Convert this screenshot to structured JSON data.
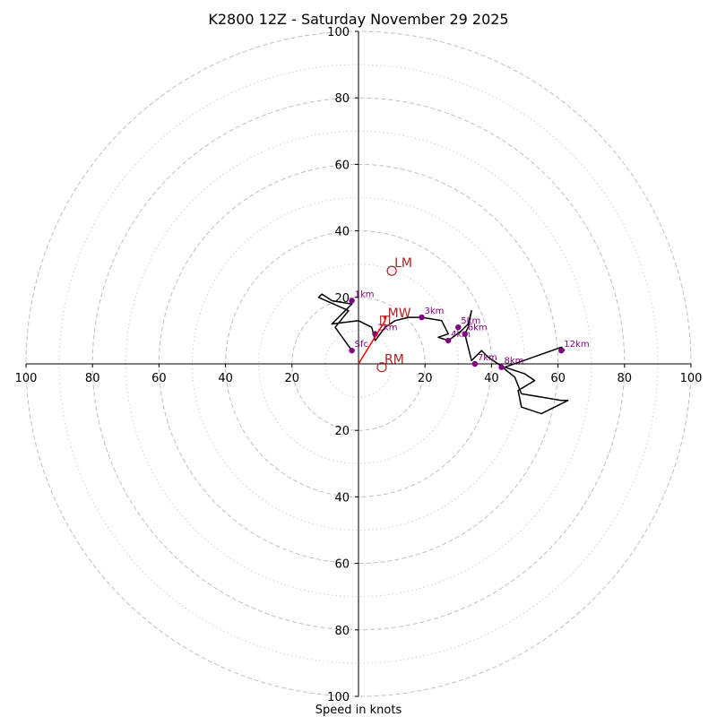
{
  "chart_data": {
    "type": "hodograph",
    "title": "K2800 12Z - Saturday November 29 2025",
    "xlabel": "Speed in knots",
    "range": 100,
    "major_rings": [
      20,
      40,
      60,
      80,
      100
    ],
    "minor_rings": [
      10,
      30,
      50,
      70,
      90
    ],
    "x_ticks": [
      {
        "value": -100,
        "label": "100"
      },
      {
        "value": -80,
        "label": "80"
      },
      {
        "value": -60,
        "label": "60"
      },
      {
        "value": -40,
        "label": "40"
      },
      {
        "value": -20,
        "label": "20"
      },
      {
        "value": 20,
        "label": "20"
      },
      {
        "value": 40,
        "label": "40"
      },
      {
        "value": 60,
        "label": "60"
      },
      {
        "value": 80,
        "label": "80"
      },
      {
        "value": 100,
        "label": "100"
      }
    ],
    "y_ticks": [
      {
        "value": 100,
        "label": "100"
      },
      {
        "value": 80,
        "label": "80"
      },
      {
        "value": 60,
        "label": "60"
      },
      {
        "value": 40,
        "label": "40"
      },
      {
        "value": 20,
        "label": "20"
      },
      {
        "value": -20,
        "label": "20"
      },
      {
        "value": -40,
        "label": "40"
      },
      {
        "value": -60,
        "label": "60"
      },
      {
        "value": -80,
        "label": "80"
      },
      {
        "value": -100,
        "label": "100"
      }
    ],
    "trace": [
      [
        -2,
        4
      ],
      [
        -7,
        11
      ],
      [
        -3,
        16
      ],
      [
        -12,
        20
      ],
      [
        -11,
        21
      ],
      [
        -8,
        19
      ],
      [
        -2,
        18
      ],
      [
        -8,
        12
      ],
      [
        0,
        13
      ],
      [
        4,
        11
      ],
      [
        5,
        7
      ],
      [
        8,
        11
      ],
      [
        11,
        13
      ],
      [
        15,
        14
      ],
      [
        19,
        14
      ],
      [
        25,
        13
      ],
      [
        26,
        11
      ],
      [
        27,
        9
      ],
      [
        24,
        8
      ],
      [
        27,
        7
      ],
      [
        31,
        10
      ],
      [
        33,
        12
      ],
      [
        34,
        16
      ],
      [
        33,
        11
      ],
      [
        32,
        9
      ],
      [
        34,
        1
      ],
      [
        37,
        4
      ],
      [
        39,
        2
      ],
      [
        42,
        0
      ],
      [
        47,
        -4
      ],
      [
        49,
        -9
      ],
      [
        61,
        -11
      ],
      [
        63,
        -11
      ],
      [
        55,
        -15
      ],
      [
        49,
        -13
      ],
      [
        48,
        -8
      ],
      [
        53,
        -5
      ],
      [
        50,
        -3
      ],
      [
        44,
        -1
      ],
      [
        61,
        5
      ],
      [
        62,
        4
      ]
    ],
    "height_markers": [
      {
        "label": "Sfc",
        "u": -2,
        "v": 4
      },
      {
        "label": "1km",
        "u": -2,
        "v": 19
      },
      {
        "label": "2km",
        "u": 5,
        "v": 9
      },
      {
        "label": "3km",
        "u": 19,
        "v": 14
      },
      {
        "label": "4km",
        "u": 27,
        "v": 7
      },
      {
        "label": "5km",
        "u": 30,
        "v": 11
      },
      {
        "label": "6km",
        "u": 32,
        "v": 9
      },
      {
        "label": "7km",
        "u": 35,
        "v": 0
      },
      {
        "label": "8km",
        "u": 43,
        "v": -1
      },
      {
        "label": "12km",
        "u": 61,
        "v": 4
      }
    ],
    "storm_motion": [
      {
        "label": "LM",
        "u": 10,
        "v": 28,
        "marker": "circle"
      },
      {
        "label": "MW",
        "u": 8,
        "v": 13,
        "marker": "square"
      },
      {
        "label": "RM",
        "u": 7,
        "v": -1,
        "marker": "circle"
      }
    ],
    "shear_vector": {
      "from": [
        0,
        0
      ],
      "to": [
        8,
        13
      ]
    },
    "colors": {
      "trace": "#000000",
      "height_marker": "#800080",
      "storm_motion": "#b22222",
      "shear_vector": "#ff0000",
      "grid": "#bfbfbf",
      "axis": "#000000"
    }
  }
}
